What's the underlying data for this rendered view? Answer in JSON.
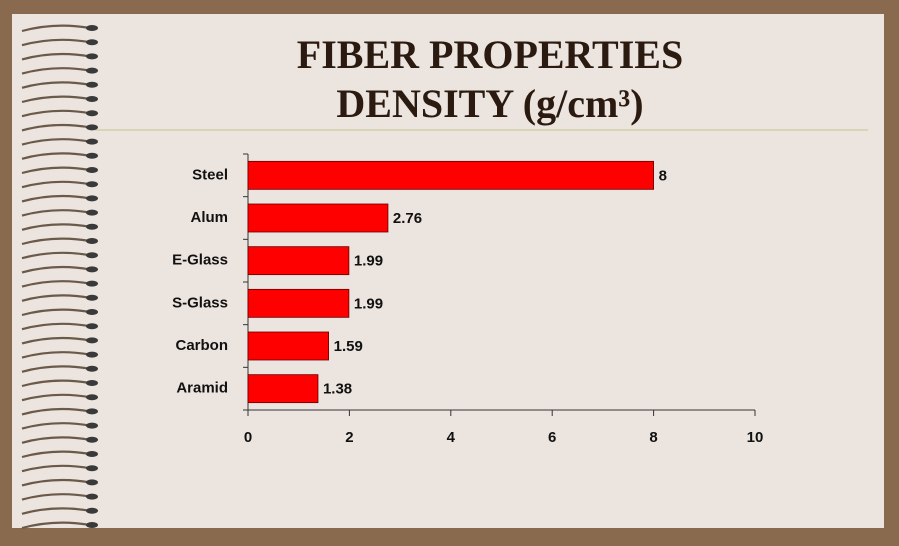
{
  "chart_data": {
    "type": "barh",
    "title": "FIBER PROPERTIES",
    "subtitle": "DENSITY (g/cm³)",
    "categories": [
      "Steel",
      "Alum",
      "E-Glass",
      "S-Glass",
      "Carbon",
      "Aramid"
    ],
    "values": [
      8,
      2.76,
      1.99,
      1.99,
      1.59,
      1.38
    ],
    "color": "#ff0000",
    "xlim": [
      0,
      10
    ],
    "xticks": [
      0,
      2,
      4,
      6,
      8,
      10
    ]
  }
}
